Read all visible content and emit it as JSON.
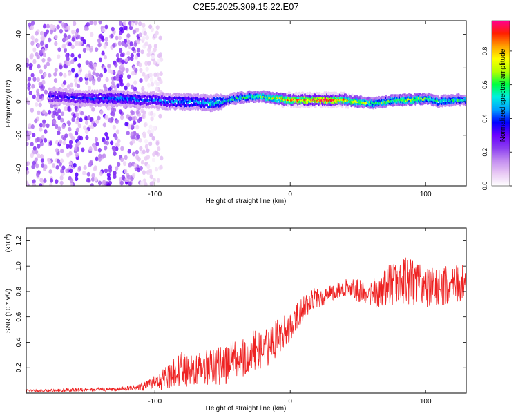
{
  "figure_title": "C2E5.2025.309.15.22.E07",
  "colors": {
    "snr_line": "#ee2222",
    "colorbar_stops": [
      "#ffffff",
      "#e8c8f4",
      "#c28cf0",
      "#8a3cf0",
      "#6a00ff",
      "#0000ff",
      "#00a0ff",
      "#00f0e0",
      "#00ff40",
      "#b4ff00",
      "#ffff00",
      "#ffa000",
      "#ff2000",
      "#ff0090"
    ]
  },
  "chart_data": [
    {
      "type": "heatmap",
      "title": "C2E5.2025.309.15.22.E07",
      "xlabel": "Height of straight line (km)",
      "ylabel": "Frequency (Hz)",
      "xlim": [
        -195,
        130
      ],
      "ylim": [
        -50,
        48
      ],
      "xticks": [
        -100,
        0,
        100
      ],
      "xtick_labels": [
        "-100",
        "0",
        "100"
      ],
      "yticks": [
        -40,
        -20,
        0,
        20,
        40
      ],
      "ytick_labels": [
        "-40",
        "-20",
        "0",
        "20",
        "40"
      ],
      "colorbar": {
        "label": "Normalized spectral amplitude",
        "range": [
          0,
          0.98
        ],
        "ticks": [
          0.0,
          0.2,
          0.4,
          0.6,
          0.8
        ],
        "tick_labels": [
          "0.0",
          "0.2",
          "0.4",
          "0.6",
          "0.8"
        ]
      },
      "ridge": {
        "x": [
          -170,
          -150,
          -130,
          -110,
          -100,
          -90,
          -80,
          -70,
          -60,
          -50,
          -40,
          -30,
          -20,
          -10,
          0,
          10,
          20,
          30,
          40,
          50,
          60,
          70,
          80,
          90,
          100,
          110,
          120,
          130
        ],
        "freq": [
          3,
          2,
          2,
          1,
          1,
          0,
          0,
          0,
          -1,
          0,
          2,
          3,
          3,
          2,
          1,
          1,
          1,
          1,
          1,
          0,
          -1,
          0,
          1,
          1,
          2,
          0,
          1,
          1
        ],
        "amplitude": [
          0.35,
          0.4,
          0.45,
          0.45,
          0.45,
          0.45,
          0.5,
          0.5,
          0.55,
          0.55,
          0.6,
          0.65,
          0.7,
          0.8,
          0.9,
          0.98,
          0.98,
          0.95,
          0.85,
          0.75,
          0.7,
          0.65,
          0.7,
          0.75,
          0.7,
          0.6,
          0.6,
          0.6
        ]
      },
      "noise_extent_km": [
        -195,
        -110
      ]
    },
    {
      "type": "line",
      "xlabel": "Height of straight line (km)",
      "ylabel": "SNR (10 * v/v)",
      "scale_label": "(x10",
      "scale_exponent": "4",
      "scale_label_close": ")",
      "xlim": [
        -195,
        130
      ],
      "ylim": [
        0,
        13000
      ],
      "xticks": [
        -100,
        0,
        100
      ],
      "xtick_labels": [
        "-100",
        "0",
        "100"
      ],
      "yticks": [
        2000,
        4000,
        6000,
        8000,
        10000,
        12000
      ],
      "ytick_labels": [
        "0.2",
        "0.4",
        "0.6",
        "0.8",
        "1.0",
        "1.2"
      ],
      "series": [
        {
          "x": [
            -195,
            -180,
            -160,
            -140,
            -130,
            -120,
            -110,
            -105,
            -100,
            -95,
            -90,
            -85,
            -80,
            -75,
            -70,
            -65,
            -60,
            -55,
            -50,
            -45,
            -40,
            -35,
            -30,
            -25,
            -20,
            -15,
            -10,
            -5,
            0,
            5,
            10,
            15,
            20,
            25,
            30,
            35,
            40,
            45,
            50,
            55,
            60,
            65,
            70,
            75,
            80,
            85,
            90,
            95,
            100,
            105,
            110,
            115,
            120,
            125,
            130
          ],
          "y": [
            200,
            200,
            250,
            300,
            300,
            400,
            500,
            600,
            800,
            1000,
            1300,
            1600,
            1900,
            1700,
            1800,
            1900,
            2100,
            2000,
            2300,
            2300,
            2700,
            2600,
            3000,
            3300,
            3500,
            3600,
            4300,
            4900,
            5200,
            6000,
            6700,
            7300,
            7500,
            7500,
            7900,
            8100,
            8300,
            8200,
            8100,
            7900,
            7800,
            7900,
            8300,
            8600,
            8800,
            8900,
            8700,
            8500,
            8400,
            8200,
            8300,
            8500,
            8600,
            8600,
            8700
          ],
          "spread": [
            100,
            100,
            150,
            150,
            150,
            200,
            300,
            400,
            600,
            800,
            1000,
            1200,
            1400,
            1300,
            1300,
            1400,
            1500,
            1400,
            1600,
            1600,
            1800,
            1700,
            1800,
            1800,
            1600,
            1500,
            1500,
            1300,
            1200,
            1100,
            1000,
            900,
            800,
            700,
            700,
            700,
            700,
            800,
            900,
            1000,
            1100,
            1300,
            1500,
            1700,
            1800,
            1900,
            1800,
            1700,
            1600,
            1600,
            1500,
            1500,
            1500,
            1500,
            1500
          ]
        }
      ]
    }
  ]
}
